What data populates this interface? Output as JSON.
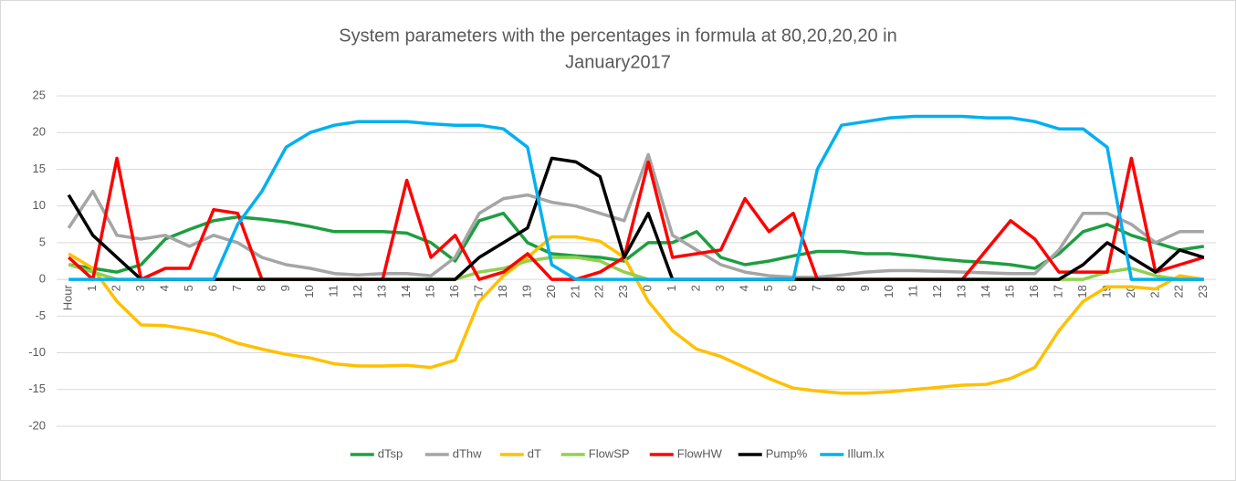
{
  "chart_data": {
    "type": "line",
    "title": [
      "System parameters with the percentages in formula at 80,20,20,20 in",
      "January2017"
    ],
    "categories": [
      "Hour",
      "1",
      "2",
      "3",
      "4",
      "5",
      "6",
      "7",
      "8",
      "9",
      "10",
      "11",
      "12",
      "13",
      "14",
      "15",
      "16",
      "17",
      "18",
      "19",
      "20",
      "21",
      "22",
      "23",
      "0",
      "1",
      "2",
      "3",
      "4",
      "5",
      "6",
      "7",
      "8",
      "9",
      "10",
      "11",
      "12",
      "13",
      "14",
      "15",
      "16",
      "17",
      "18",
      "19",
      "20",
      "21",
      "22",
      "23"
    ],
    "ylim": [
      -20,
      25
    ],
    "yticks": [
      -20,
      -15,
      -10,
      -5,
      0,
      5,
      10,
      15,
      20,
      25
    ],
    "grid": true,
    "legend": "bottom",
    "series": [
      {
        "name": "dTsp",
        "color": "#1e9e40",
        "values": [
          2,
          1.5,
          1,
          2,
          5.5,
          6.8,
          8,
          8.5,
          8.2,
          7.8,
          7.2,
          6.5,
          6.5,
          6.5,
          6.3,
          5,
          2.5,
          8,
          9,
          5,
          3.5,
          3.2,
          3,
          2.5,
          5,
          5,
          6.5,
          3,
          2,
          2.5,
          3.2,
          3.8,
          3.8,
          3.5,
          3.5,
          3.2,
          2.8,
          2.5,
          2.3,
          2,
          1.5,
          3.5,
          6.5,
          7.5,
          6,
          5,
          4,
          4.5
        ]
      },
      {
        "name": "dThw",
        "color": "#a5a5a5",
        "values": [
          7,
          12,
          6,
          5.5,
          6,
          4.5,
          6,
          5,
          3,
          2,
          1.5,
          0.8,
          0.6,
          0.8,
          0.8,
          0.5,
          3,
          9,
          11,
          11.5,
          10.5,
          10,
          9,
          8,
          17,
          6,
          4,
          2,
          1,
          0.5,
          0.3,
          0.3,
          0.6,
          1,
          1.2,
          1.2,
          1.1,
          1,
          0.9,
          0.8,
          0.8,
          4,
          9,
          9,
          7.5,
          5,
          6.5,
          6.5
        ]
      },
      {
        "name": "dT",
        "color": "#ffc000",
        "values": [
          3.5,
          1.5,
          -3,
          -6.2,
          -6.3,
          -6.8,
          -7.5,
          -8.7,
          -9.5,
          -10.2,
          -10.7,
          -11.5,
          -11.8,
          -11.8,
          -11.7,
          -12,
          -11,
          -3,
          0.5,
          3,
          5.8,
          5.8,
          5.2,
          3,
          -3,
          -7,
          -9.5,
          -10.5,
          -12,
          -13.5,
          -14.8,
          -15.2,
          -15.5,
          -15.5,
          -15.3,
          -15,
          -14.7,
          -14.4,
          -14.3,
          -13.5,
          -12,
          -7,
          -3,
          -1,
          -1,
          -1.3,
          0.5,
          0
        ]
      },
      {
        "name": "FlowSP",
        "color": "#92d050",
        "values": [
          2,
          1,
          0,
          0,
          0,
          0,
          0,
          0,
          0,
          0,
          0,
          0,
          0,
          0,
          0,
          0,
          0,
          1,
          1.5,
          2.5,
          3,
          3,
          2.5,
          1,
          0,
          0,
          0,
          0,
          0,
          0,
          0,
          0,
          0,
          0,
          0,
          0,
          0,
          0,
          0,
          0,
          0,
          0,
          0,
          1,
          1.5,
          0.5,
          0,
          0
        ]
      },
      {
        "name": "FlowHW",
        "color": "#ff0000",
        "values": [
          3,
          0,
          16.5,
          0,
          1.5,
          1.5,
          9.5,
          9,
          0,
          0,
          0,
          0,
          0,
          0,
          13.5,
          3,
          6,
          0,
          1,
          3.5,
          0,
          0,
          1,
          3,
          16,
          3,
          3.5,
          4,
          11,
          6.5,
          9,
          0,
          0,
          0,
          0,
          0,
          0,
          0,
          4,
          8,
          5.5,
          1,
          1,
          1,
          16.5,
          1,
          2,
          3
        ]
      },
      {
        "name": "Pump%",
        "color": "#000000",
        "values": [
          11.5,
          6,
          3,
          0,
          0,
          0,
          0,
          0,
          0,
          0,
          0,
          0,
          0,
          0,
          0,
          0,
          0,
          3,
          5,
          7,
          16.5,
          16,
          14,
          3,
          9,
          0,
          0,
          0,
          0,
          0,
          0,
          0,
          0,
          0,
          0,
          0,
          0,
          0,
          0,
          0,
          0,
          0,
          2,
          5,
          3,
          1,
          4,
          3
        ]
      },
      {
        "name": "Illum.lx",
        "color": "#00b0f0",
        "values": [
          0,
          0,
          0,
          0,
          0,
          0,
          0,
          7.5,
          12,
          18,
          20,
          21,
          21.5,
          21.5,
          21.5,
          21.2,
          21,
          21,
          20.5,
          18,
          2,
          0,
          0,
          0,
          0,
          0,
          0,
          0,
          0,
          0,
          0,
          15,
          21,
          21.5,
          22,
          22.2,
          22.2,
          22.2,
          22,
          22,
          21.5,
          20.5,
          20.5,
          18,
          0,
          0,
          0,
          0
        ]
      }
    ]
  }
}
